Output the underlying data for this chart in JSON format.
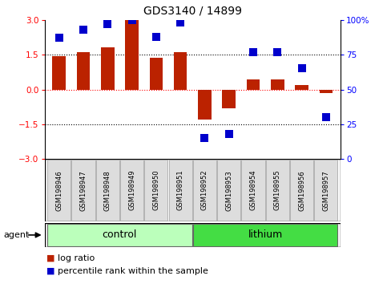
{
  "title": "GDS3140 / 14899",
  "samples": [
    "GSM198946",
    "GSM198947",
    "GSM198948",
    "GSM198949",
    "GSM198950",
    "GSM198951",
    "GSM198952",
    "GSM198953",
    "GSM198954",
    "GSM198955",
    "GSM198956",
    "GSM198957"
  ],
  "log_ratio": [
    1.42,
    1.62,
    1.82,
    3.0,
    1.35,
    1.62,
    -1.3,
    -0.8,
    0.42,
    0.42,
    0.2,
    -0.15
  ],
  "percentile": [
    87,
    93,
    97,
    100,
    88,
    98,
    15,
    18,
    77,
    77,
    65,
    30
  ],
  "bar_color": "#bb2200",
  "dot_color": "#0000cc",
  "control_color": "#bbffbb",
  "lithium_color": "#44dd44",
  "sample_box_color": "#dddddd",
  "control_label": "control",
  "lithium_label": "lithium",
  "control_indices": [
    0,
    1,
    2,
    3,
    4,
    5
  ],
  "lithium_indices": [
    6,
    7,
    8,
    9,
    10,
    11
  ],
  "ylim_left": [
    -3,
    3
  ],
  "yticks_left": [
    -3,
    -1.5,
    0,
    1.5,
    3
  ],
  "yticks_right": [
    0,
    25,
    50,
    75,
    100
  ],
  "hlines": [
    -1.5,
    0,
    1.5
  ],
  "hline_colors": [
    "black",
    "red",
    "black"
  ],
  "hline_styles": [
    "dotted",
    "dotted",
    "dotted"
  ],
  "bar_width": 0.55,
  "dot_size": 45,
  "agent_label": "agent",
  "legend_log_ratio": "log ratio",
  "legend_percentile": "percentile rank within the sample",
  "title_fontsize": 10,
  "tick_fontsize": 7.5,
  "sample_fontsize": 6,
  "group_fontsize": 9
}
